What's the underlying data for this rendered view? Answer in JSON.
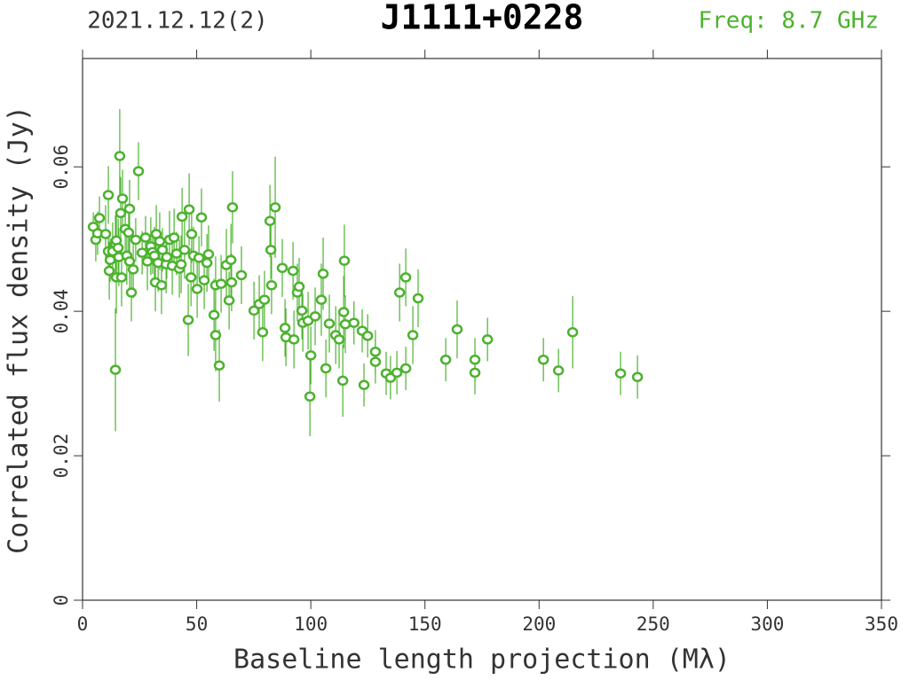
{
  "chart_data": {
    "type": "scatter",
    "title": "J1111+0228",
    "date": "2021.12.12(2)",
    "annotation": "Freq: 8.7 GHz",
    "xlabel": "Baseline length projection (Mλ)",
    "ylabel": "Correlated flux density (Jy)",
    "color": "#4cb22e",
    "xlim": [
      0,
      350
    ],
    "ylim": [
      0,
      0.075
    ],
    "xticks": [
      0,
      50,
      100,
      150,
      200,
      250,
      300,
      350
    ],
    "yticks": [
      0,
      0.02,
      0.04,
      0.06
    ],
    "x": [
      4.7,
      5.8,
      6.6,
      7.4,
      10.1,
      11.3,
      11.3,
      11.7,
      12.1,
      13.2,
      14.4,
      14.4,
      14.8,
      14.8,
      15.6,
      15.9,
      16.3,
      16.7,
      17.1,
      17.5,
      18.7,
      19.4,
      20.2,
      20.6,
      20.6,
      21.4,
      22.2,
      23.3,
      24.5,
      26.1,
      27.6,
      28.4,
      29.9,
      30.7,
      31.5,
      31.9,
      32.3,
      33.1,
      33.8,
      34.6,
      35.0,
      36.6,
      36.9,
      38.1,
      39.3,
      40.1,
      41.2,
      42.4,
      43.2,
      43.6,
      44.7,
      46.3,
      46.7,
      47.5,
      47.8,
      48.6,
      50.2,
      51.0,
      52.1,
      53.3,
      54.5,
      55.2,
      57.6,
      58.3,
      58.3,
      59.9,
      60.7,
      63.0,
      64.2,
      65.0,
      65.3,
      65.7,
      69.6,
      75.1,
      77.4,
      78.9,
      79.7,
      82.1,
      82.5,
      82.8,
      84.4,
      87.5,
      88.7,
      89.1,
      92.2,
      92.6,
      94.1,
      94.9,
      96.1,
      96.5,
      98.8,
      99.6,
      100.0,
      101.9,
      104.6,
      105.4,
      106.6,
      108.1,
      110.9,
      112.4,
      114.0,
      114.4,
      114.7,
      115.1,
      118.9,
      122.5,
      123.3,
      124.9,
      128.3,
      128.3,
      133.0,
      134.9,
      137.7,
      138.9,
      141.6,
      141.6,
      144.7,
      147.0,
      159.1,
      164.1,
      171.9,
      171.9,
      177.4,
      201.9,
      208.5,
      214.7,
      235.7,
      243.1
    ],
    "values": [
      0.0517,
      0.0499,
      0.0508,
      0.0529,
      0.0507,
      0.0561,
      0.0483,
      0.0456,
      0.0471,
      0.0483,
      0.0493,
      0.0319,
      0.0447,
      0.0498,
      0.0488,
      0.0475,
      0.0615,
      0.0536,
      0.0447,
      0.0556,
      0.0514,
      0.0477,
      0.0509,
      0.0542,
      0.0469,
      0.0426,
      0.0458,
      0.0499,
      0.0594,
      0.0481,
      0.0502,
      0.0469,
      0.049,
      0.0482,
      0.0477,
      0.044,
      0.0507,
      0.0467,
      0.0497,
      0.0436,
      0.0485,
      0.0465,
      0.0475,
      0.0499,
      0.0463,
      0.0502,
      0.048,
      0.0459,
      0.0465,
      0.0531,
      0.0485,
      0.0388,
      0.0541,
      0.0447,
      0.0507,
      0.0477,
      0.0431,
      0.0474,
      0.053,
      0.0443,
      0.0467,
      0.0479,
      0.0395,
      0.0436,
      0.0367,
      0.0325,
      0.0438,
      0.0464,
      0.0415,
      0.0471,
      0.044,
      0.0544,
      0.045,
      0.0401,
      0.041,
      0.0371,
      0.0416,
      0.0525,
      0.0485,
      0.0436,
      0.0544,
      0.046,
      0.0377,
      0.0364,
      0.0456,
      0.0361,
      0.0426,
      0.0434,
      0.0401,
      0.0384,
      0.0387,
      0.0282,
      0.0339,
      0.0393,
      0.0416,
      0.0452,
      0.0321,
      0.0383,
      0.0367,
      0.0361,
      0.0304,
      0.0399,
      0.047,
      0.0382,
      0.0384,
      0.0373,
      0.0298,
      0.0366,
      0.0344,
      0.033,
      0.0314,
      0.0308,
      0.0315,
      0.0426,
      0.0447,
      0.0321,
      0.0367,
      0.0418,
      0.0333,
      0.0375,
      0.0315,
      0.0333,
      0.0361,
      0.0333,
      0.0318,
      0.0371,
      0.0314,
      0.0309
    ],
    "errors": [
      0.002,
      0.003,
      0.003,
      0.003,
      0.004,
      0.004,
      0.003,
      0.004,
      0.003,
      0.004,
      0.004,
      0.0085,
      0.005,
      0.004,
      0.004,
      0.004,
      0.0065,
      0.005,
      0.004,
      0.004,
      0.004,
      0.004,
      0.004,
      0.004,
      0.004,
      0.004,
      0.004,
      0.003,
      0.004,
      0.003,
      0.003,
      0.004,
      0.004,
      0.003,
      0.004,
      0.004,
      0.004,
      0.004,
      0.004,
      0.004,
      0.003,
      0.004,
      0.003,
      0.004,
      0.004,
      0.004,
      0.003,
      0.004,
      0.004,
      0.004,
      0.004,
      0.005,
      0.005,
      0.004,
      0.004,
      0.004,
      0.004,
      0.003,
      0.004,
      0.004,
      0.004,
      0.004,
      0.005,
      0.004,
      0.005,
      0.005,
      0.004,
      0.005,
      0.004,
      0.005,
      0.004,
      0.005,
      0.004,
      0.004,
      0.004,
      0.004,
      0.004,
      0.005,
      0.004,
      0.004,
      0.007,
      0.004,
      0.004,
      0.004,
      0.004,
      0.004,
      0.004,
      0.004,
      0.004,
      0.004,
      0.004,
      0.0055,
      0.004,
      0.004,
      0.005,
      0.005,
      0.004,
      0.004,
      0.004,
      0.004,
      0.005,
      0.005,
      0.005,
      0.004,
      0.003,
      0.003,
      0.003,
      0.003,
      0.003,
      0.003,
      0.003,
      0.003,
      0.003,
      0.004,
      0.004,
      0.003,
      0.004,
      0.004,
      0.003,
      0.004,
      0.003,
      0.003,
      0.003,
      0.003,
      0.003,
      0.005,
      0.003,
      0.003
    ]
  }
}
